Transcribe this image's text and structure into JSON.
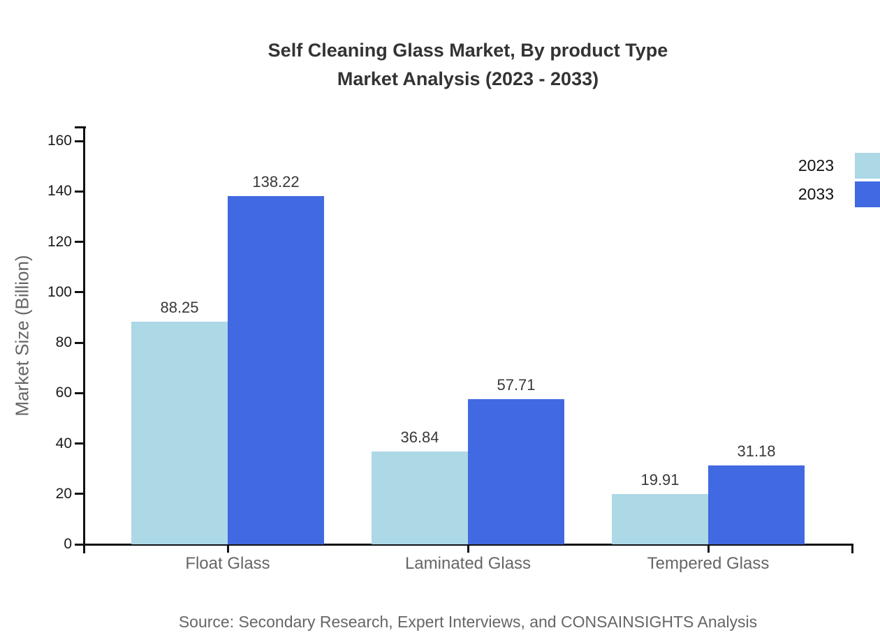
{
  "title": {
    "line1": "Self Cleaning Glass Market, By product Type",
    "line2": "Market Analysis (2023 - 2033)"
  },
  "source": "Source: Secondary Research, Expert Interviews, and CONSAINSIGHTS Analysis",
  "chart_data": {
    "type": "bar",
    "categories": [
      "Float Glass",
      "Laminated Glass",
      "Tempered Glass"
    ],
    "series": [
      {
        "name": "2023",
        "color": "#ADD8E6",
        "values": [
          88.25,
          36.84,
          19.91
        ]
      },
      {
        "name": "2033",
        "color": "#4169E1",
        "values": [
          138.22,
          57.71,
          31.18
        ]
      }
    ],
    "title": "Self Cleaning Glass Market, By product Type Market Analysis (2023 - 2033)",
    "xlabel": "",
    "ylabel": "Market Size (Billion)",
    "ylim": [
      0,
      160
    ],
    "yticks": [
      0,
      20,
      40,
      60,
      80,
      100,
      120,
      140,
      160
    ],
    "grid": false,
    "legend_position": "top-right",
    "value_labels": true
  },
  "colors": {
    "series_2023": "#ADD8E6",
    "series_2033": "#4169E1",
    "title_text": "#333333",
    "axis_text": "#666666",
    "tick_text": "#1a1a1a",
    "value_text": "#383838",
    "axis_line": "#111111",
    "background": "#ffffff"
  }
}
